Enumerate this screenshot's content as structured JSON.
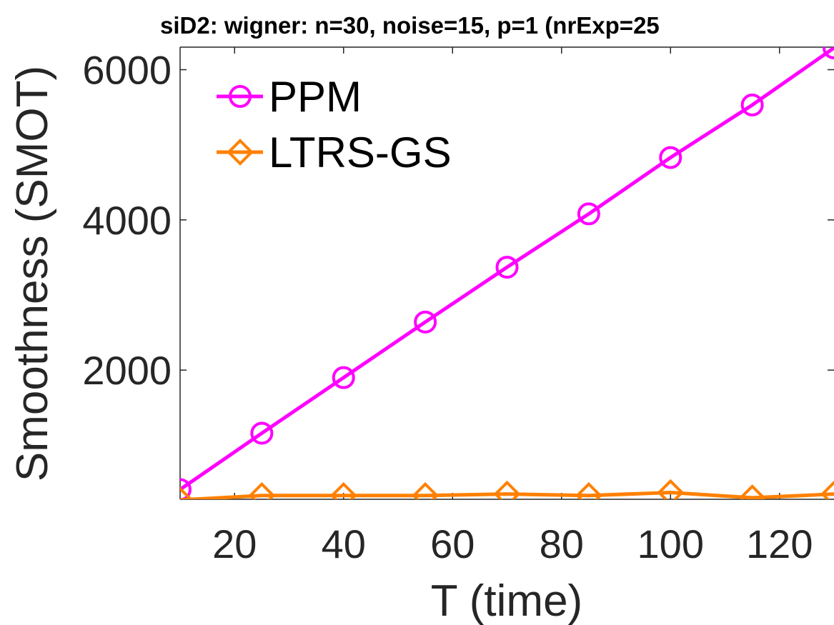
{
  "chart_data": {
    "type": "line",
    "title": "siD2: wigner: n=30, noise=15, p=1 (nrExp=25",
    "xlabel": "T (time)",
    "ylabel": "Smoothness (SMOT)",
    "xlim": [
      10,
      130
    ],
    "ylim": [
      280,
      6300
    ],
    "x_ticks": [
      20,
      40,
      60,
      80,
      100,
      120
    ],
    "y_ticks": [
      2000,
      4000,
      6000
    ],
    "grid": false,
    "legend_position": "top-left",
    "x": [
      10,
      25,
      40,
      55,
      70,
      85,
      100,
      115,
      130
    ],
    "series": [
      {
        "name": "PPM",
        "color": "#ff00ff",
        "marker": "circle",
        "values": [
          410,
          1160,
          1900,
          2640,
          3370,
          4080,
          4830,
          5530,
          6290
        ]
      },
      {
        "name": "LTRS-GS",
        "color": "#ff8000",
        "marker": "diamond",
        "values": [
          270,
          330,
          330,
          330,
          350,
          330,
          370,
          300,
          350
        ]
      }
    ]
  }
}
